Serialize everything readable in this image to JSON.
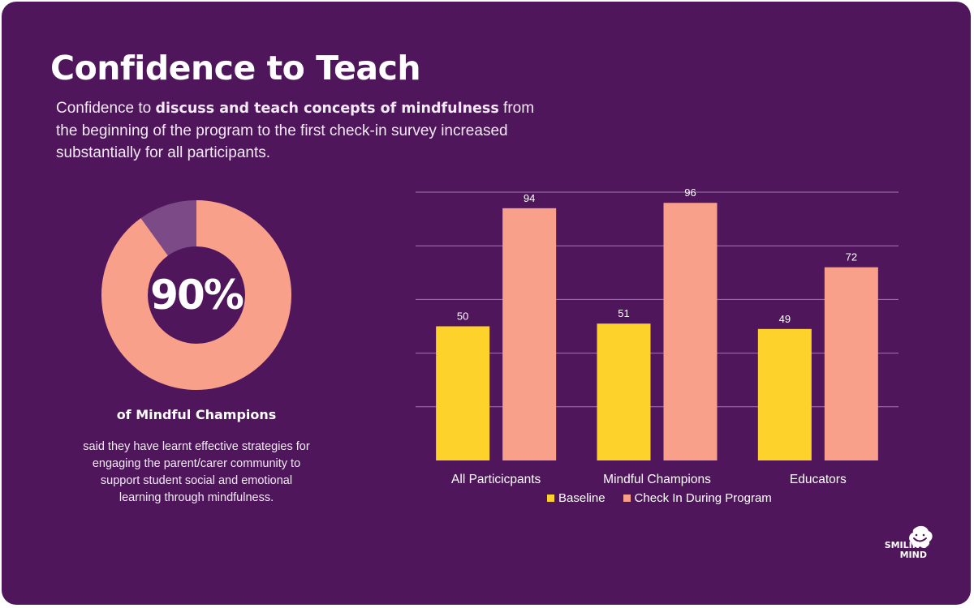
{
  "title": "Confidence to Teach",
  "subtitle": {
    "pre": "Confidence to ",
    "bold": "discuss and teach concepts of mindfulness",
    "post": " from the beginning of the program to the first check-in survey increased substantially for all participants."
  },
  "donut": {
    "value": 90,
    "label": "90%",
    "caption": "of Mindful Champions",
    "note": "said they have learnt effective strategies for engaging the parent/carer community to support student social and emotional learning through mindfulness.",
    "colors": {
      "filled": "#f9a08b",
      "remaining": "#7c4a87"
    }
  },
  "colors": {
    "background": "#4f165c",
    "baseline": "#fdd22a",
    "checkin": "#f9a08b",
    "grid": "#a27aa8"
  },
  "chart_data": {
    "type": "bar",
    "title": "",
    "categories": [
      "All Particicpants",
      "Mindful Champions",
      "Educators"
    ],
    "series": [
      {
        "name": "Baseline",
        "values": [
          50,
          51,
          49
        ],
        "color": "#fdd22a"
      },
      {
        "name": "Check In During Program",
        "values": [
          94,
          96,
          72
        ],
        "color": "#f9a08b"
      }
    ],
    "ylim": [
      0,
      100
    ],
    "grid": true,
    "data_labels": true,
    "legend": "bottom"
  },
  "logo": {
    "line1": "SMILING",
    "line2": "MIND"
  }
}
